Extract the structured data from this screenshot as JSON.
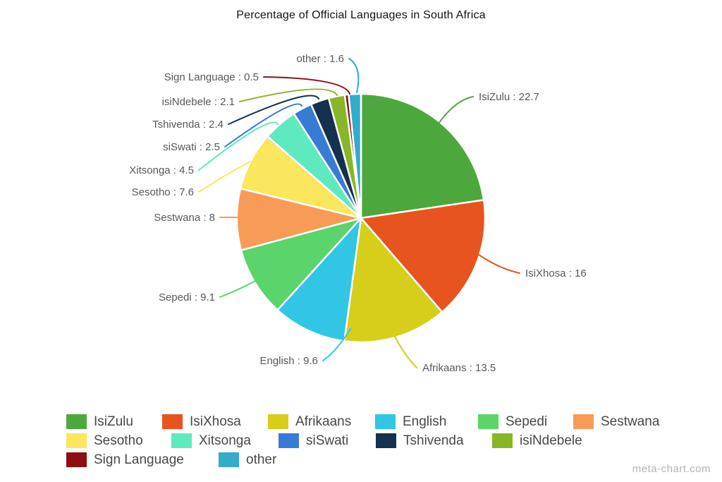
{
  "title": "Percentage of Official Languages in South Africa",
  "watermark": "meta-chart.com",
  "label_separator": " : ",
  "chart_data": {
    "type": "pie",
    "title": "Percentage of Official Languages in South Africa",
    "categories": [
      "IsiZulu",
      "IsiXhosa",
      "Afrikaans",
      "English",
      "Sepedi",
      "Sestwana",
      "Sesotho",
      "Xitsonga",
      "siSwati",
      "Tshivenda",
      "isiNdebele",
      "Sign Language",
      "other"
    ],
    "values": [
      22.7,
      16,
      13.5,
      9.6,
      9.1,
      8,
      7.6,
      4.5,
      2.5,
      2.4,
      2.1,
      0.5,
      1.6
    ],
    "colors": [
      "#4CA83C",
      "#E8541F",
      "#D6CE1B",
      "#31C6E5",
      "#5AD46B",
      "#F89B56",
      "#FAE75E",
      "#5FE9BE",
      "#377BD5",
      "#15314F",
      "#87B627",
      "#8E0E13",
      "#33ABCB"
    ],
    "slice_labels": [
      "IsiZulu : 22.7",
      "IsiXhosa : 16",
      "Afrikaans : 13.5",
      "English : 9.6",
      "Sepedi : 9.1",
      "Sestwana : 8",
      "Sesotho : 7.6",
      "Xitsonga : 4.5",
      "siSwati : 2.5",
      "Tshivenda : 2.4",
      "isiNdebele : 2.1",
      "Sign Language : 0.5",
      "other : 1.6"
    ],
    "legend_entries": [
      "IsiZulu",
      "IsiXhosa",
      "Afrikaans",
      "English",
      "Sepedi",
      "Sestwana",
      "Sesotho",
      "Xitsonga",
      "siSwati",
      "Tshivenda",
      "isiNdebele",
      "Sign Language",
      "other"
    ],
    "legend_position": "bottom",
    "start_angle_deg": 0,
    "direction": "clockwise",
    "label_text_color": "#58585a",
    "slice_gap_color": "#ffffff"
  }
}
